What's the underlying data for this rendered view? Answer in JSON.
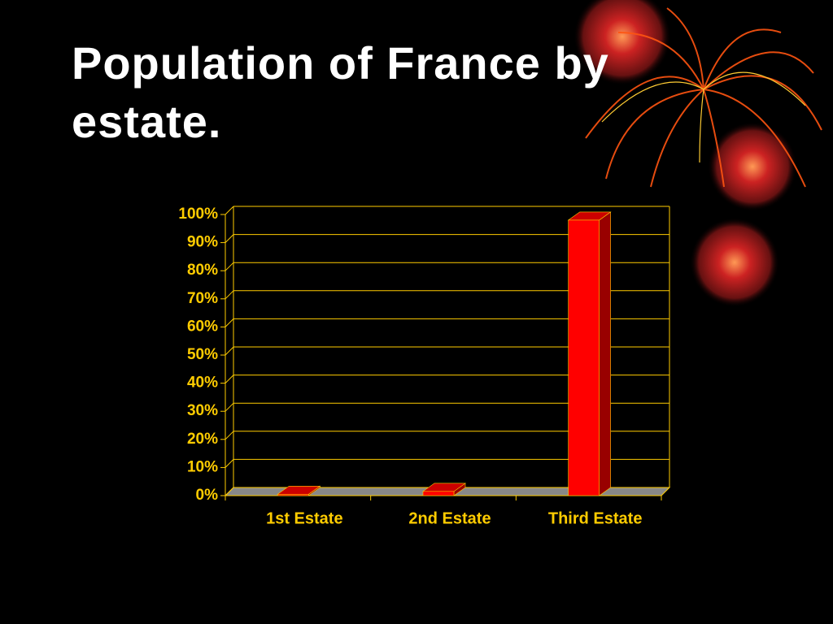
{
  "chart_data": {
    "type": "bar",
    "title": "Population of France by estate.",
    "categories": [
      "1st Estate",
      "2nd Estate",
      "Third Estate"
    ],
    "values": [
      0.5,
      1.5,
      98
    ],
    "color": "#ff0000",
    "ylim": [
      0,
      100
    ],
    "yticks": [
      {
        "value": 0,
        "label": "0%"
      },
      {
        "value": 10,
        "label": "10%"
      },
      {
        "value": 20,
        "label": "20%"
      },
      {
        "value": 30,
        "label": "30%"
      },
      {
        "value": 40,
        "label": "40%"
      },
      {
        "value": 50,
        "label": "50%"
      },
      {
        "value": 60,
        "label": "60%"
      },
      {
        "value": 70,
        "label": "70%"
      },
      {
        "value": 80,
        "label": "80%"
      },
      {
        "value": 90,
        "label": "90%"
      },
      {
        "value": 100,
        "label": "100%"
      }
    ],
    "grid": true
  }
}
